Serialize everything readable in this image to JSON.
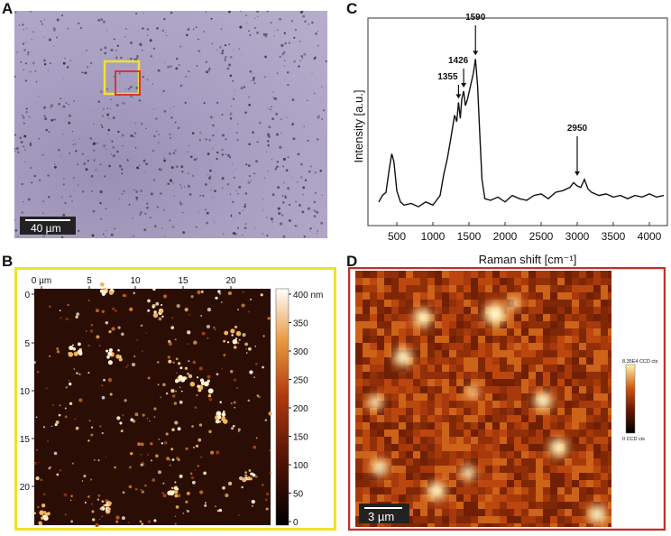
{
  "panels": {
    "a": {
      "letter": "A",
      "scalebar_label": "40 µm"
    },
    "b": {
      "letter": "B"
    },
    "c": {
      "letter": "C"
    },
    "d": {
      "letter": "D",
      "scalebar_label": "3 µm"
    }
  },
  "colors": {
    "optical_bg": "#a89fc2",
    "yellow_frame": "#f2e12c",
    "red_frame": "#d43a2a",
    "afm_dark": "#2a0d05",
    "raman_map_mid": "#b0420f"
  },
  "afm": {
    "x_ticks": [
      "0 µm",
      "5",
      "10",
      "15",
      "20"
    ],
    "y_ticks": [
      "0",
      "5",
      "10",
      "15",
      "20"
    ],
    "colorbar_ticks": [
      "400 nm",
      "350",
      "300",
      "250",
      "200",
      "150",
      "100",
      "50",
      "0"
    ]
  },
  "raman_map": {
    "colorbar_top": "8.35E4 CCD cts",
    "colorbar_bottom": "0 CCD cts"
  },
  "chart_data": {
    "type": "line",
    "title": "",
    "xlabel": "Raman shift [cm⁻¹]",
    "ylabel": "Intensity [a.u.]",
    "xlim": [
      100,
      4250
    ],
    "ylim": [
      0,
      100
    ],
    "x_ticks": [
      500,
      1000,
      1500,
      2000,
      2500,
      3000,
      3500,
      4000
    ],
    "annotations": [
      {
        "label": "1355",
        "x": 1355,
        "y": 70
      },
      {
        "label": "1426",
        "x": 1426,
        "y": 77
      },
      {
        "label": "1590",
        "x": 1590,
        "y": 97
      },
      {
        "label": "2950",
        "x": 3000,
        "y": 22
      }
    ],
    "series": [
      {
        "x": [
          250,
          300,
          350,
          400,
          430,
          460,
          500,
          550,
          600,
          700,
          800,
          900,
          1000,
          1050,
          1100,
          1150,
          1200,
          1250,
          1300,
          1330,
          1355,
          1380,
          1400,
          1426,
          1450,
          1480,
          1520,
          1560,
          1590,
          1620,
          1650,
          1680,
          1720,
          1800,
          1900,
          2000,
          2100,
          2200,
          2300,
          2400,
          2500,
          2600,
          2700,
          2800,
          2900,
          2950,
          3000,
          3050,
          3100,
          3150,
          3200,
          3300,
          3400,
          3500,
          3600,
          3700,
          3800,
          3900,
          4000,
          4100,
          4200
        ],
        "values": [
          8,
          12,
          14,
          30,
          38,
          33,
          15,
          8,
          6,
          7,
          5,
          8,
          6,
          9,
          12,
          25,
          35,
          48,
          62,
          58,
          70,
          60,
          72,
          77,
          68,
          72,
          80,
          88,
          97,
          80,
          50,
          22,
          10,
          9,
          11,
          8,
          12,
          10,
          9,
          12,
          13,
          10,
          14,
          15,
          17,
          20,
          18,
          17,
          22,
          16,
          14,
          12,
          13,
          11,
          12,
          10,
          12,
          11,
          13,
          11,
          12
        ]
      }
    ]
  }
}
